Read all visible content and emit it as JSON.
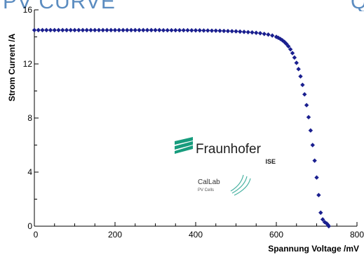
{
  "slide": {
    "title": "PV CURVE",
    "title_trailing": "Q"
  },
  "chart_data": {
    "type": "scatter",
    "title": "PV CURVE",
    "xlabel": "Spannung Voltage /mV",
    "ylabel": "Strom Current /A",
    "xlim": [
      0,
      800
    ],
    "ylim": [
      0,
      16
    ],
    "x_ticks": [
      0,
      200,
      400,
      600,
      800
    ],
    "y_ticks": [
      0,
      4,
      8,
      12,
      16
    ],
    "grid": false,
    "legend": "none",
    "marker": "diamond",
    "color": "#1a1f8f",
    "series": [
      {
        "x": [
          0,
          10,
          20,
          30,
          40,
          50,
          60,
          70,
          80,
          90,
          100,
          110,
          120,
          130,
          140,
          150,
          160,
          170,
          180,
          190,
          200,
          210,
          220,
          230,
          240,
          250,
          260,
          270,
          280,
          290,
          300,
          310,
          320,
          330,
          340,
          350,
          360,
          370,
          380,
          390,
          400,
          410,
          420,
          430,
          440,
          450,
          460,
          470,
          480,
          490,
          500,
          510,
          520,
          530,
          540,
          550,
          560,
          570,
          580,
          590,
          600,
          605,
          610,
          615,
          620,
          625,
          630,
          635,
          640,
          645,
          650,
          655,
          660,
          665,
          670,
          675,
          680,
          685,
          690,
          695,
          700,
          705,
          710,
          715,
          720,
          725,
          728,
          730
        ],
        "y": [
          14.5,
          14.5,
          14.5,
          14.5,
          14.5,
          14.5,
          14.5,
          14.5,
          14.5,
          14.5,
          14.5,
          14.5,
          14.5,
          14.5,
          14.5,
          14.5,
          14.5,
          14.5,
          14.5,
          14.5,
          14.5,
          14.5,
          14.5,
          14.5,
          14.5,
          14.5,
          14.5,
          14.5,
          14.5,
          14.5,
          14.5,
          14.5,
          14.49,
          14.49,
          14.49,
          14.49,
          14.49,
          14.49,
          14.49,
          14.48,
          14.48,
          14.48,
          14.47,
          14.47,
          14.46,
          14.46,
          14.45,
          14.44,
          14.43,
          14.42,
          14.41,
          14.39,
          14.37,
          14.35,
          14.33,
          14.3,
          14.27,
          14.22,
          14.17,
          14.1,
          14.0,
          13.93,
          13.85,
          13.75,
          13.63,
          13.48,
          13.3,
          13.08,
          12.8,
          12.47,
          12.08,
          11.62,
          11.08,
          10.45,
          9.75,
          8.95,
          8.06,
          7.08,
          6.0,
          4.85,
          3.6,
          2.3,
          1.0,
          0.5,
          0.3,
          0.2,
          0.1,
          0.0
        ]
      }
    ]
  },
  "logos": {
    "fraunhofer_name": "Fraunhofer",
    "fraunhofer_sub": "ISE",
    "callab_name": "CalLab",
    "callab_sub": "PV Cells",
    "fraunhofer_color": "#179c7d"
  }
}
